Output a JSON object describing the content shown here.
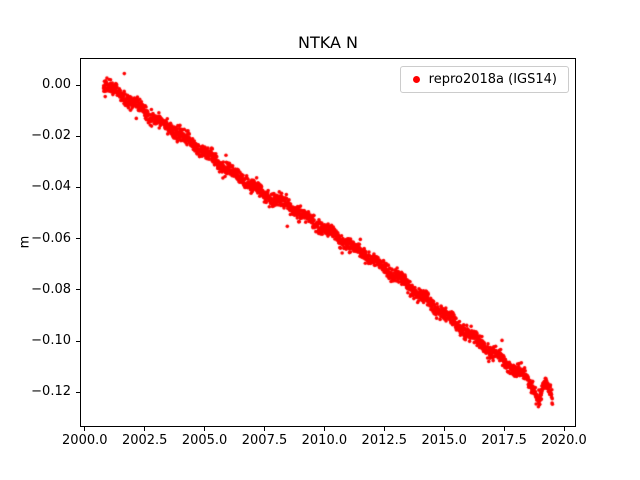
{
  "chart_data": {
    "type": "scatter",
    "title": "NTKA N",
    "xlabel": "",
    "ylabel": "m",
    "grid": false,
    "legend_position": "upper right",
    "series": [
      {
        "name": "repro2018a (IGS14)",
        "color": "#ff0000",
        "marker": "dot"
      }
    ],
    "xlim": [
      1999.8,
      2020.5
    ],
    "ylim": [
      -0.1336,
      0.0106
    ],
    "xticks": [
      {
        "v": 2000.0,
        "label": "2000.0"
      },
      {
        "v": 2002.5,
        "label": "2002.5"
      },
      {
        "v": 2005.0,
        "label": "2005.0"
      },
      {
        "v": 2007.5,
        "label": "2007.5"
      },
      {
        "v": 2010.0,
        "label": "2010.0"
      },
      {
        "v": 2012.5,
        "label": "2012.5"
      },
      {
        "v": 2015.0,
        "label": "2015.0"
      },
      {
        "v": 2017.5,
        "label": "2017.5"
      },
      {
        "v": 2020.0,
        "label": "2020.0"
      }
    ],
    "yticks": [
      {
        "v": 0.0,
        "label": "0.00"
      },
      {
        "v": -0.02,
        "label": "−0.02"
      },
      {
        "v": -0.04,
        "label": "−0.04"
      },
      {
        "v": -0.06,
        "label": "−0.06"
      },
      {
        "v": -0.08,
        "label": "−0.08"
      },
      {
        "v": -0.1,
        "label": "−0.10"
      },
      {
        "v": -0.12,
        "label": "−0.12"
      }
    ],
    "trend_anchors": [
      [
        2000.78,
        0.001
      ],
      [
        2001.0,
        -0.0005
      ],
      [
        2001.5,
        -0.004
      ],
      [
        2002.0,
        -0.007
      ],
      [
        2002.6,
        -0.011
      ],
      [
        2003.2,
        -0.0145
      ],
      [
        2004.0,
        -0.0195
      ],
      [
        2004.8,
        -0.025
      ],
      [
        2005.6,
        -0.0305
      ],
      [
        2006.4,
        -0.036
      ],
      [
        2007.0,
        -0.0395
      ],
      [
        2007.6,
        -0.0435
      ],
      [
        2008.2,
        -0.0455
      ],
      [
        2008.8,
        -0.049
      ],
      [
        2009.4,
        -0.0525
      ],
      [
        2010.0,
        -0.056
      ],
      [
        2010.6,
        -0.0595
      ],
      [
        2011.1,
        -0.0635
      ],
      [
        2011.6,
        -0.065
      ],
      [
        2012.2,
        -0.0695
      ],
      [
        2012.8,
        -0.0735
      ],
      [
        2013.4,
        -0.0775
      ],
      [
        2014.0,
        -0.082
      ],
      [
        2014.6,
        -0.0865
      ],
      [
        2015.2,
        -0.091
      ],
      [
        2015.8,
        -0.0955
      ],
      [
        2016.4,
        -0.1
      ],
      [
        2017.0,
        -0.1045
      ],
      [
        2017.6,
        -0.1085
      ],
      [
        2018.1,
        -0.1125
      ],
      [
        2018.5,
        -0.115
      ],
      [
        2018.8,
        -0.12
      ],
      [
        2019.0,
        -0.1235
      ],
      [
        2019.15,
        -0.117
      ],
      [
        2019.35,
        -0.119
      ],
      [
        2019.52,
        -0.1225
      ]
    ],
    "generation": {
      "x_start": 2000.78,
      "x_end": 2019.52,
      "step": 0.008,
      "noise_sigma": 0.0013,
      "seasonal_amplitude": 0.0009,
      "seed": 42,
      "marker_radius": 1.8,
      "outlier_every": 160,
      "outlier_scale": 2.4
    },
    "outliers": [
      {
        "x": 2001.65,
        "y": 0.0045
      },
      {
        "x": 2002.15,
        "y": -0.013
      }
    ]
  }
}
